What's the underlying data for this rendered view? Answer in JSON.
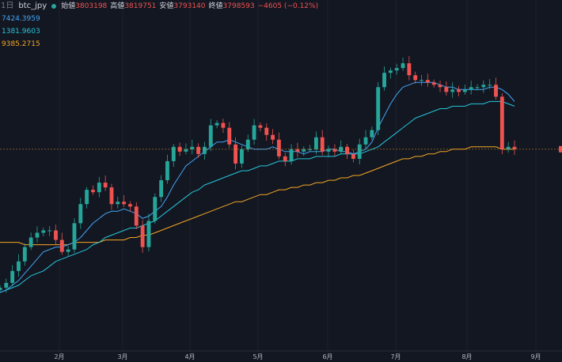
{
  "header": {
    "interval": "1日",
    "symbol": "btc_jpy",
    "ohlc": [
      {
        "label": "始値",
        "value": "3803198"
      },
      {
        "label": "高値",
        "value": "3819751"
      },
      {
        "label": "安値",
        "value": "3793140"
      },
      {
        "label": "終値",
        "value": "3798593"
      }
    ],
    "change": "−4605 (−0.12%)"
  },
  "moving_averages": [
    {
      "value": "7424.3959",
      "color": "#42a5f5"
    },
    {
      "value": "1381.9603",
      "color": "#26c6da"
    },
    {
      "value": "9385.2715",
      "color": "#f5a623"
    }
  ],
  "colors": {
    "background": "#131722",
    "up": "#26a69a",
    "down": "#ef5350",
    "grid": "#1e222d"
  },
  "chart_data": {
    "type": "candlestick",
    "x_axis_labels": [
      "2月",
      "3月",
      "4月",
      "5月",
      "6月",
      "7月",
      "8月",
      "9月"
    ],
    "close_series_relative": [
      0.02,
      0.04,
      0.09,
      0.13,
      0.19,
      0.23,
      0.25,
      0.26,
      0.26,
      0.22,
      0.17,
      0.18,
      0.29,
      0.37,
      0.43,
      0.42,
      0.46,
      0.44,
      0.37,
      0.38,
      0.37,
      0.36,
      0.28,
      0.19,
      0.3,
      0.4,
      0.47,
      0.55,
      0.61,
      0.59,
      0.6,
      0.61,
      0.58,
      0.61,
      0.7,
      0.71,
      0.69,
      0.62,
      0.54,
      0.6,
      0.64,
      0.7,
      0.69,
      0.66,
      0.64,
      0.57,
      0.55,
      0.6,
      0.59,
      0.6,
      0.6,
      0.65,
      0.59,
      0.6,
      0.59,
      0.61,
      0.58,
      0.56,
      0.62,
      0.65,
      0.68,
      0.86,
      0.92,
      0.93,
      0.94,
      0.96,
      0.91,
      0.89,
      0.89,
      0.88,
      0.87,
      0.86,
      0.84,
      0.85,
      0.84,
      0.85,
      0.86,
      0.86,
      0.87,
      0.87,
      0.82,
      0.6,
      0.61,
      0.6
    ],
    "ma_short_relative": [
      0.0,
      0.01,
      0.03,
      0.05,
      0.08,
      0.11,
      0.14,
      0.17,
      0.18,
      0.19,
      0.19,
      0.2,
      0.21,
      0.23,
      0.26,
      0.29,
      0.31,
      0.33,
      0.34,
      0.34,
      0.35,
      0.34,
      0.33,
      0.31,
      0.32,
      0.34,
      0.36,
      0.4,
      0.45,
      0.49,
      0.53,
      0.55,
      0.57,
      0.59,
      0.61,
      0.63,
      0.63,
      0.64,
      0.63,
      0.62,
      0.61,
      0.6,
      0.6,
      0.6,
      0.61,
      0.6,
      0.59,
      0.59,
      0.59,
      0.58,
      0.59,
      0.59,
      0.59,
      0.6,
      0.6,
      0.59,
      0.59,
      0.58,
      0.59,
      0.6,
      0.63,
      0.69,
      0.74,
      0.79,
      0.83,
      0.86,
      0.87,
      0.88,
      0.88,
      0.88,
      0.88,
      0.87,
      0.86,
      0.86,
      0.85,
      0.85,
      0.85,
      0.85,
      0.85,
      0.86,
      0.86,
      0.85,
      0.83,
      0.8
    ],
    "ma_mid_relative": [
      0.0,
      0.01,
      0.02,
      0.03,
      0.05,
      0.07,
      0.08,
      0.09,
      0.11,
      0.13,
      0.14,
      0.15,
      0.16,
      0.17,
      0.18,
      0.2,
      0.21,
      0.23,
      0.24,
      0.25,
      0.26,
      0.27,
      0.27,
      0.28,
      0.29,
      0.3,
      0.32,
      0.34,
      0.36,
      0.38,
      0.4,
      0.42,
      0.43,
      0.45,
      0.46,
      0.47,
      0.48,
      0.49,
      0.5,
      0.51,
      0.51,
      0.52,
      0.53,
      0.53,
      0.54,
      0.55,
      0.55,
      0.55,
      0.56,
      0.56,
      0.56,
      0.57,
      0.57,
      0.57,
      0.57,
      0.58,
      0.58,
      0.58,
      0.58,
      0.59,
      0.6,
      0.61,
      0.63,
      0.65,
      0.67,
      0.69,
      0.71,
      0.73,
      0.74,
      0.75,
      0.76,
      0.77,
      0.77,
      0.78,
      0.78,
      0.78,
      0.79,
      0.79,
      0.79,
      0.8,
      0.8,
      0.8,
      0.79,
      0.78
    ],
    "ma_long_relative": [
      0.21,
      0.21,
      0.21,
      0.21,
      0.2,
      0.2,
      0.2,
      0.2,
      0.2,
      0.2,
      0.2,
      0.2,
      0.21,
      0.21,
      0.21,
      0.21,
      0.21,
      0.22,
      0.22,
      0.22,
      0.22,
      0.23,
      0.23,
      0.24,
      0.24,
      0.25,
      0.26,
      0.27,
      0.28,
      0.29,
      0.3,
      0.31,
      0.32,
      0.33,
      0.34,
      0.35,
      0.36,
      0.37,
      0.38,
      0.38,
      0.39,
      0.4,
      0.41,
      0.41,
      0.42,
      0.43,
      0.43,
      0.44,
      0.44,
      0.45,
      0.45,
      0.46,
      0.46,
      0.47,
      0.47,
      0.48,
      0.48,
      0.49,
      0.49,
      0.5,
      0.51,
      0.52,
      0.53,
      0.54,
      0.55,
      0.56,
      0.56,
      0.57,
      0.57,
      0.58,
      0.58,
      0.59,
      0.59,
      0.6,
      0.6,
      0.6,
      0.61,
      0.61,
      0.61,
      0.61,
      0.61,
      0.6,
      0.6,
      0.6
    ]
  }
}
